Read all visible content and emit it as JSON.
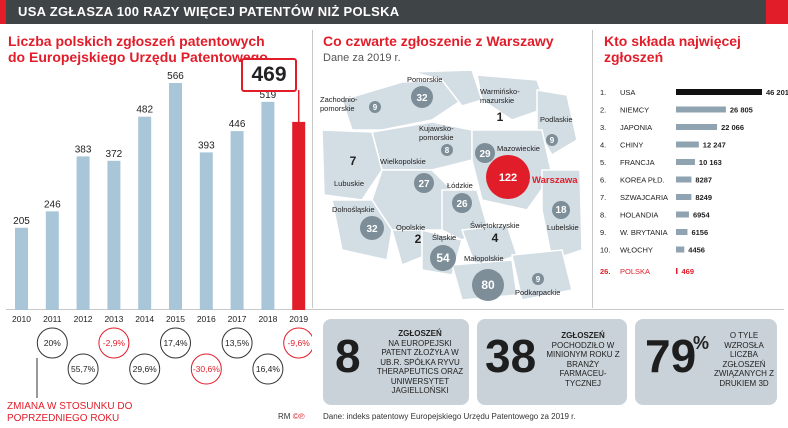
{
  "header": {
    "title": "USA ZGŁASZA 100 RAZY WIĘCEJ PATENTÓW NIŻ POLSKA"
  },
  "left": {
    "title": "Liczba polskich zgłoszeń patentowych do Europejskiego Urzędu Patentowego",
    "callout": "469",
    "legend": "ZMIANA W STOSUNKU DO POPRZEDNIEGO ROKU",
    "credit": "RM"
  },
  "chart_data": [
    {
      "type": "bar",
      "title": "Liczba polskich zgłoszeń patentowych do Europejskiego Urzędu Patentowego",
      "categories": [
        "2010",
        "2011",
        "2012",
        "2013",
        "2014",
        "2015",
        "2016",
        "2017",
        "2018",
        "2019"
      ],
      "values": [
        205,
        246,
        383,
        372,
        482,
        566,
        393,
        446,
        519,
        469
      ],
      "value_labels": [
        "205",
        "246",
        "383",
        "372",
        "482",
        "566",
        "393",
        "446",
        "519",
        "469"
      ],
      "changes": [
        "",
        "20%",
        "55,7%",
        "-2,9%",
        "29,6%",
        "17,4%",
        "-30,6%",
        "13,5%",
        "16,4%",
        "-9,6%"
      ],
      "colors": {
        "bar": "#a9c6d8",
        "highlight": "#e11d2a",
        "negative": "#e11d2a"
      }
    },
    {
      "type": "bar",
      "title": "Kto składa najwięcej zgłoszeń",
      "categories": [
        "USA",
        "NIEMCY",
        "JAPONIA",
        "CHINY",
        "FRANCJA",
        "KOREA PŁD.",
        "SZWAJCARIA",
        "HOLANDIA",
        "W. BRYTANIA",
        "WŁOCHY",
        "POLSKA"
      ],
      "ranks": [
        "1.",
        "2.",
        "3.",
        "4.",
        "5.",
        "6.",
        "7.",
        "8.",
        "9.",
        "10.",
        "26."
      ],
      "values": [
        46201,
        26805,
        22066,
        12247,
        10163,
        8287,
        8249,
        6954,
        6156,
        4456,
        469
      ],
      "value_labels": [
        "46 201",
        "26 805",
        "22 066",
        "12 247",
        "10 163",
        "8287",
        "8249",
        "6954",
        "6156",
        "4456",
        "469"
      ],
      "colors": {
        "top": "#111111",
        "bar": "#8fa3b1",
        "highlight": "#e11d2a"
      }
    }
  ],
  "map": {
    "title": "Co czwarte zgłoszenie z Warszawy",
    "subtitle": "Dane za 2019 r.",
    "regions": [
      {
        "name": "Pomorskie",
        "value": "32"
      },
      {
        "name": "Warmińsko-\nmazurskie",
        "value": "1"
      },
      {
        "name": "Zachodnio-\npomorskie",
        "value": "9"
      },
      {
        "name": "Kujawsko-\npomorskie",
        "value": "8"
      },
      {
        "name": "Podlaskie",
        "value": "9"
      },
      {
        "name": "Mazowieckie",
        "value": "29"
      },
      {
        "name": "Lubuskie",
        "value": "7"
      },
      {
        "name": "Wielkopolskie",
        "value": "27"
      },
      {
        "name": "Łódzkie",
        "value": "26"
      },
      {
        "name": "Dolnośląskie",
        "value": "32"
      },
      {
        "name": "Opolskie",
        "value": "2"
      },
      {
        "name": "Śląskie",
        "value": "54"
      },
      {
        "name": "Świętokrzyskie",
        "value": "4"
      },
      {
        "name": "Lubelskie",
        "value": "18"
      },
      {
        "name": "Małopolskie",
        "value": "80"
      },
      {
        "name": "Podkarpackie",
        "value": "9"
      },
      {
        "name": "Warszawa",
        "value": "122"
      }
    ]
  },
  "right": {
    "title": "Kto składa najwięcej zgłoszeń"
  },
  "cards": [
    {
      "number": "8",
      "bold": "ZGŁOSZEŃ",
      "text": "NA EUROPEJSKI PATENT ZŁOŻYŁA W UB.R. SPÓŁKA RYVU THERAPEUTICS ORAZ UNIWERSYTET JAGIELLOŃSKI"
    },
    {
      "number": "38",
      "bold": "ZGŁOSZEŃ",
      "text": "POCHODZIŁO W MINIONYM ROKU Z BRANŻY FARMACEU- TYCZNEJ"
    },
    {
      "number": "79",
      "suffix": "%",
      "bold": "",
      "text": "O TYLE WZROSŁA LICZBA ZGŁOSZEŃ ZWIĄZANYCH Z DRUKIEM 3D"
    }
  ],
  "footer": {
    "source": "Dane: indeks patentowy Europejskiego Urzędu Patentowego za 2019 r."
  }
}
